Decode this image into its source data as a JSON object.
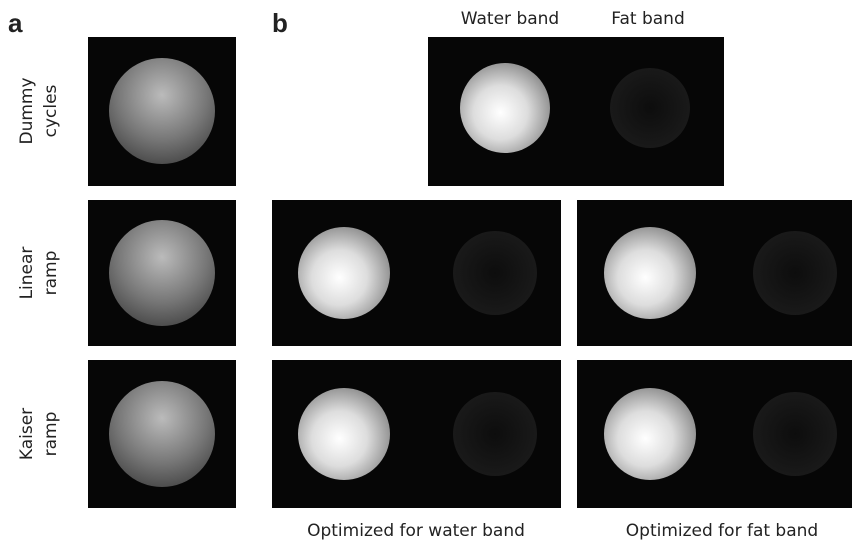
{
  "panel_labels": {
    "a": "a",
    "b": "b"
  },
  "column_headers": {
    "water": "Water band",
    "fat": "Fat band"
  },
  "rows": [
    {
      "line1": "Dummy",
      "line2": "cycles"
    },
    {
      "line1": "Linear",
      "line2": "ramp"
    },
    {
      "line1": "Kaiser",
      "line2": "ramp"
    }
  ],
  "footers": {
    "water": "Optimized for water band",
    "fat": "Optimized for fat band"
  }
}
